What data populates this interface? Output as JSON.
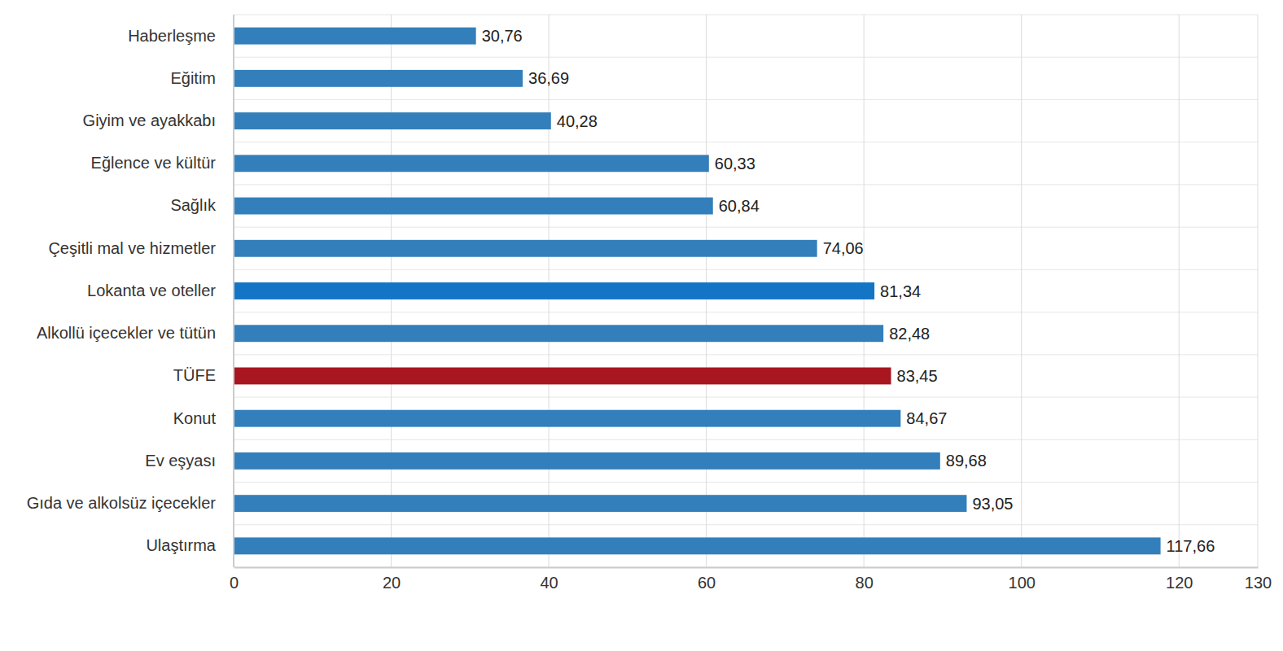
{
  "chart_data": {
    "type": "bar",
    "orientation": "horizontal",
    "categories": [
      "Haberleşme",
      "Eğitim",
      "Giyim ve ayakkabı",
      "Eğlence ve kültür",
      "Sağlık",
      "Çeşitli mal ve hizmetler",
      "Lokanta ve oteller",
      "Alkollü içecekler ve tütün",
      "TÜFE",
      "Konut",
      "Ev eşyası",
      "Gıda ve alkolsüz içecekler",
      "Ulaştırma"
    ],
    "values": [
      30.76,
      36.69,
      40.28,
      60.33,
      60.84,
      74.06,
      81.34,
      82.48,
      83.45,
      84.67,
      89.68,
      93.05,
      117.66
    ],
    "value_labels": [
      "30,76",
      "36,69",
      "40,28",
      "60,33",
      "60,84",
      "74,06",
      "81,34",
      "82,48",
      "83,45",
      "84,67",
      "89,68",
      "93,05",
      "117,66"
    ],
    "colors": [
      "#337fbb",
      "#337fbb",
      "#337fbb",
      "#337fbb",
      "#337fbb",
      "#337fbb",
      "#1475c6",
      "#337fbb",
      "#a8161f",
      "#337fbb",
      "#337fbb",
      "#337fbb",
      "#337fbb"
    ],
    "xlim": [
      0,
      130
    ],
    "xticks": [
      0,
      20,
      40,
      60,
      80,
      100,
      120,
      130
    ],
    "grid": true,
    "data_labels": true
  }
}
